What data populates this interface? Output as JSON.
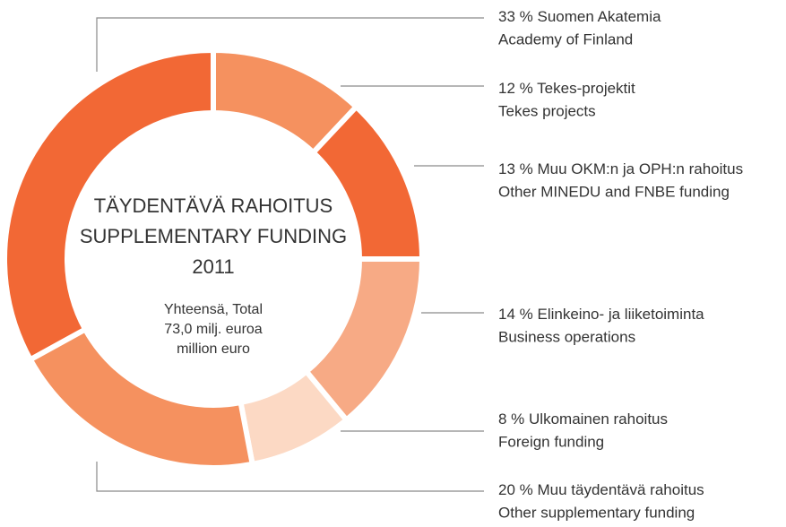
{
  "chart_data": {
    "type": "pie",
    "title": [
      "TÄYDENTÄVÄ RAHOITUS",
      "SUPPLEMENTARY FUNDING",
      "2011"
    ],
    "subtitle": [
      "Yhteensä, Total",
      "73,0 milj. euroa",
      "million euro"
    ],
    "categories": [
      "Suomen Akatemia",
      "Tekes-projektit",
      "Muu OKM:n ja OPH:n rahoitus",
      "Elinkeino- ja liiketoiminta",
      "Ulkomainen rahoitus",
      "Muu täydentävä rahoitus"
    ],
    "categories_en": [
      "Academy of Finland",
      "Tekes projects",
      "Other MINEDU and FNBE funding",
      "Business operations",
      "Foreign funding",
      "Other supplementary funding"
    ],
    "values": [
      33,
      12,
      13,
      14,
      8,
      20
    ],
    "value_labels": [
      "33 %",
      "12 %",
      "13 %",
      "14 %",
      "8 %",
      "20 %"
    ],
    "colors": [
      "#f26835",
      "#f5915f",
      "#f26835",
      "#f7aa85",
      "#fcd9c4",
      "#f5915f"
    ]
  }
}
